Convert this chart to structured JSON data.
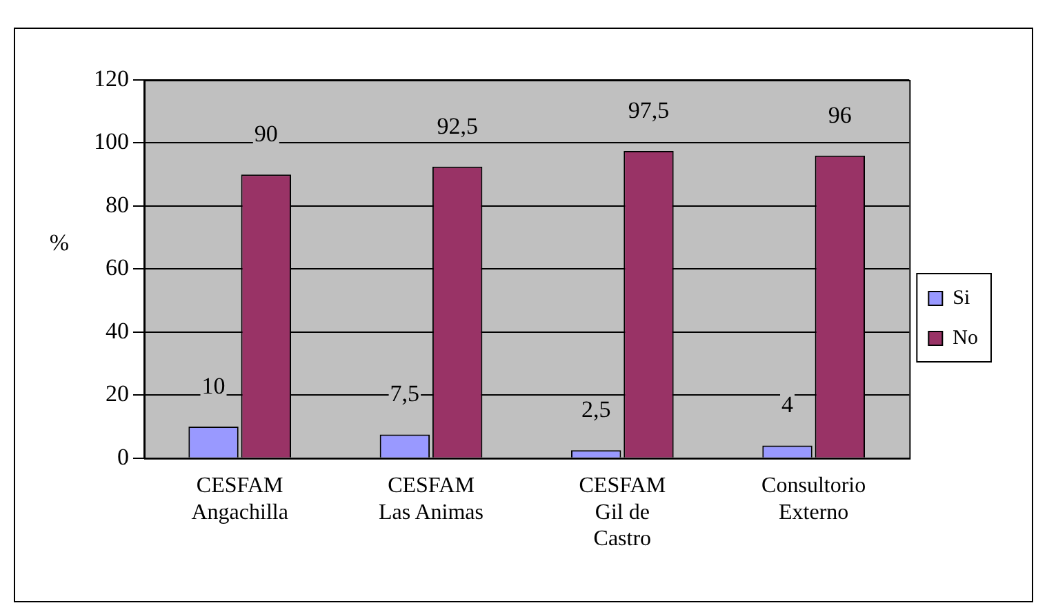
{
  "chart_data": {
    "type": "bar",
    "ylabel": "%",
    "categories": [
      "CESFAM Angachilla",
      "CESFAM Las Animas",
      "CESFAM Gil de Castro",
      "Consultorio Externo"
    ],
    "series": [
      {
        "name": "Si",
        "color": "#9999ff",
        "values": [
          10,
          7.5,
          2.5,
          4
        ],
        "value_labels": [
          "10",
          "7,5",
          "2,5",
          "4"
        ]
      },
      {
        "name": "No",
        "color": "#993366",
        "values": [
          90,
          92.5,
          97.5,
          96
        ],
        "value_labels": [
          "90",
          "92,5",
          "97,5",
          "96"
        ]
      }
    ],
    "ylim": [
      0,
      120
    ],
    "yticks": [
      0,
      20,
      40,
      60,
      80,
      100,
      120
    ],
    "grid": "y",
    "legend": "right"
  }
}
